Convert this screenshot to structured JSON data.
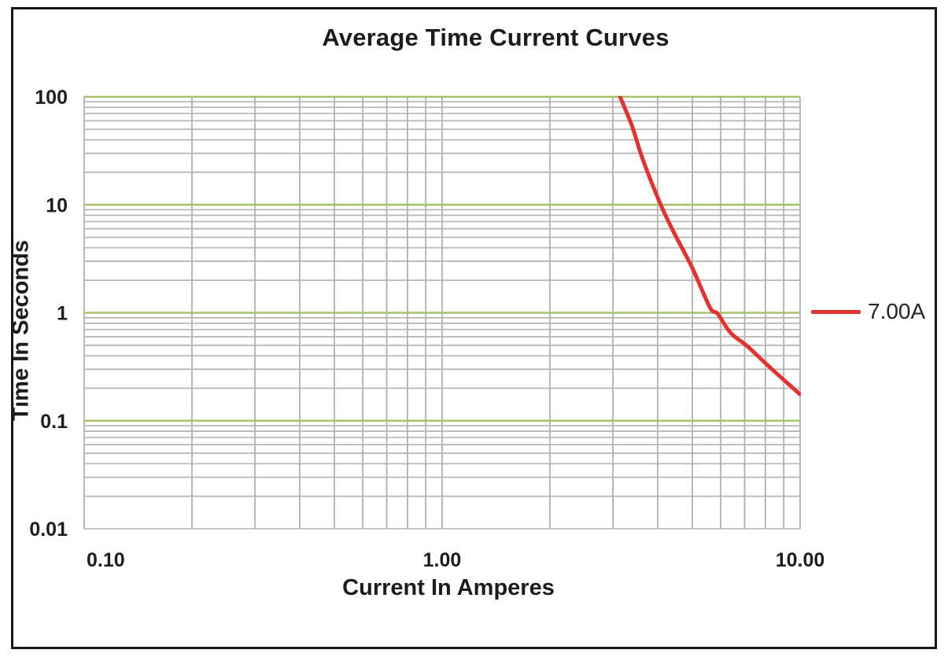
{
  "page": {
    "background": "#ffffff",
    "frame_color": "#161616"
  },
  "chart_data": {
    "type": "line",
    "title": "Average Time Current Curves",
    "xlabel": "Current In Amperes",
    "ylabel": "Time In Seconds",
    "x_scale": "log",
    "y_scale": "log",
    "xlim": [
      0.1,
      10
    ],
    "ylim": [
      0.01,
      100
    ],
    "x_ticks": [
      {
        "value": 0.1,
        "label": "0.10"
      },
      {
        "value": 1,
        "label": "1.00"
      },
      {
        "value": 10,
        "label": "10.00"
      }
    ],
    "y_ticks": [
      {
        "value": 100,
        "label": "100"
      },
      {
        "value": 10,
        "label": "10"
      },
      {
        "value": 1,
        "label": "1"
      },
      {
        "value": 0.1,
        "label": "0.1"
      },
      {
        "value": 0.01,
        "label": "0.01"
      }
    ],
    "grid": {
      "show_minor": true,
      "minor_color": "#b1b1b1",
      "major_color": "#a5c469",
      "major_y_values": [
        0.1,
        1,
        10,
        100
      ]
    },
    "legend": {
      "position": "right",
      "entries": [
        {
          "label": "7.00A",
          "color": "#e4332f"
        }
      ]
    },
    "series": [
      {
        "name": "7.00A",
        "color": "#e4332f",
        "points": [
          [
            3.14,
            100
          ],
          [
            3.39,
            54
          ],
          [
            3.64,
            26
          ],
          [
            4.08,
            10
          ],
          [
            4.46,
            5.4
          ],
          [
            5.0,
            2.6
          ],
          [
            5.6,
            1.12
          ],
          [
            5.88,
            0.98
          ],
          [
            6.4,
            0.65
          ],
          [
            7.12,
            0.49
          ],
          [
            8.44,
            0.29
          ],
          [
            9.97,
            0.177
          ]
        ]
      }
    ]
  }
}
